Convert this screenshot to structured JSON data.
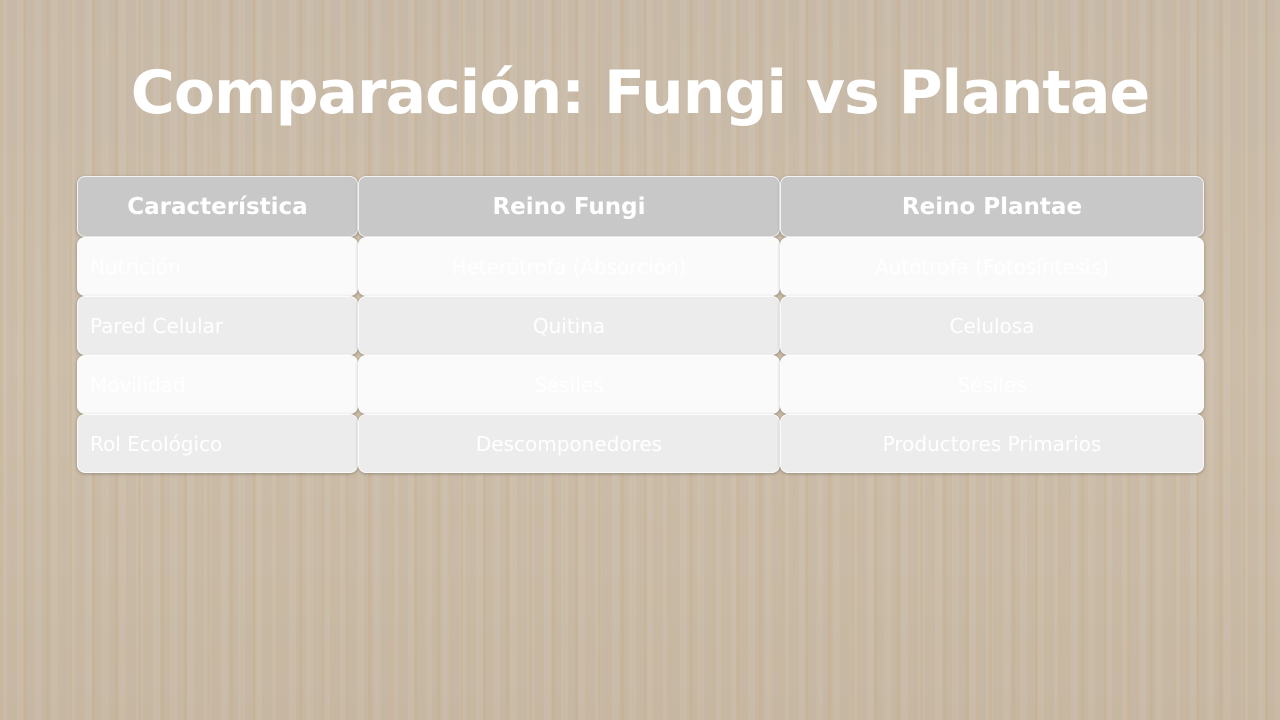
{
  "title": "Comparación: Fungi vs Plantae",
  "table": {
    "headers": [
      "Característica",
      "Reino Fungi",
      "Reino Plantae"
    ],
    "rows": [
      [
        "Nutrición",
        "Heterótrofa (Absorción)",
        "Autótrofa (Fotosíntesis)"
      ],
      [
        "Pared Celular",
        "Quitina",
        "Celulosa"
      ],
      [
        "Movilidad",
        "Sésiles",
        "Sésiles"
      ],
      [
        "Rol Ecológico",
        "Descomponedores",
        "Productores Primarios"
      ]
    ]
  }
}
